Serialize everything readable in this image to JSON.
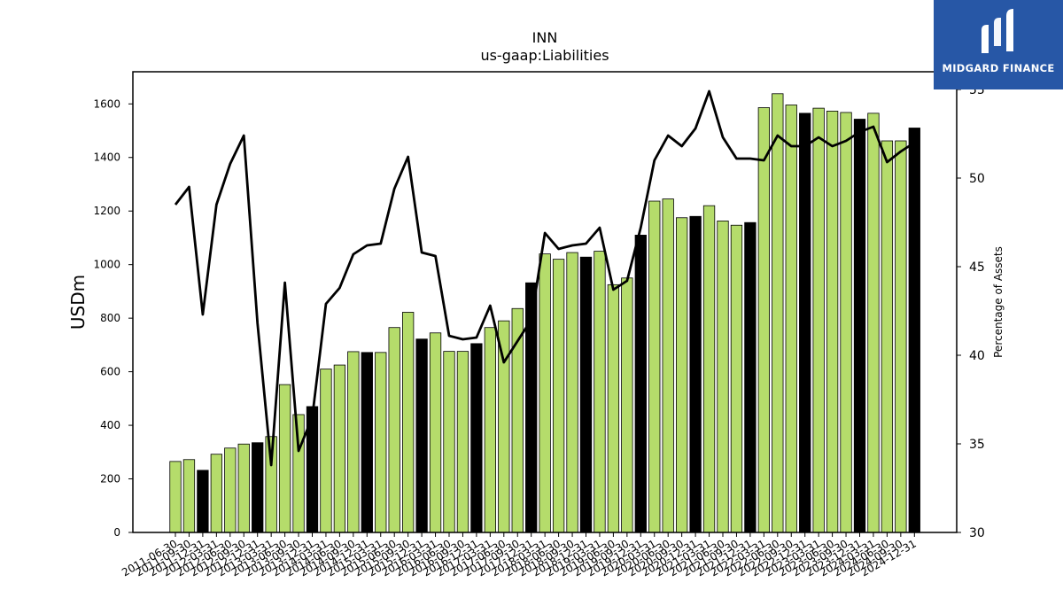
{
  "chart_data": {
    "type": "bar",
    "title": "INN",
    "subtitle": "us-gaap:Liabilities",
    "ylabel": "USDm",
    "y2label": "Percentage of Assets",
    "ylim": [
      0,
      1720
    ],
    "y2lim": [
      30,
      56
    ],
    "yticks": [
      0,
      200,
      400,
      600,
      800,
      1000,
      1200,
      1400,
      1600
    ],
    "y2ticks": [
      30,
      35,
      40,
      45,
      50,
      55
    ],
    "categories": [
      "2011-06-30",
      "2011-09-30",
      "2011-12-31",
      "2012-03-31",
      "2012-06-30",
      "2012-09-30",
      "2012-12-31",
      "2013-03-31",
      "2013-06-30",
      "2013-09-30",
      "2013-12-31",
      "2014-03-31",
      "2014-06-30",
      "2014-09-30",
      "2014-12-31",
      "2015-03-31",
      "2015-06-30",
      "2015-09-30",
      "2015-12-31",
      "2016-03-31",
      "2016-06-30",
      "2016-09-30",
      "2016-12-31",
      "2017-03-31",
      "2017-06-30",
      "2017-09-30",
      "2017-12-31",
      "2018-03-31",
      "2018-06-30",
      "2018-09-30",
      "2018-12-31",
      "2019-03-31",
      "2019-06-30",
      "2019-09-30",
      "2019-12-31",
      "2020-03-31",
      "2020-06-30",
      "2020-09-30",
      "2020-12-31",
      "2021-03-31",
      "2021-06-30",
      "2021-09-30",
      "2021-12-31",
      "2022-03-31",
      "2022-06-30",
      "2022-09-30",
      "2022-12-31",
      "2023-03-31",
      "2023-06-30",
      "2023-09-30",
      "2023-12-31",
      "2024-03-31",
      "2024-06-30",
      "2024-09-30",
      "2024-12-31"
    ],
    "xtick_labels": [
      "2011-06-30",
      "2011-09-30",
      "2011-12-31",
      "2012-03-31",
      "2012-06-30",
      "2012-09-30",
      "2012-12-31",
      "2013-03-31",
      "2013-06-30",
      "2013-09-30",
      "2013-12-31",
      "2014-03-31",
      "2014-06-30",
      "2014-09-30",
      "2014-12-31",
      "2015-03-31",
      "2015-06-30",
      "2015-09-30",
      "2015-12-31",
      "2016-03-31",
      "2016-06-30",
      "2016-09-30",
      "2016-12-31",
      "2017-03-31",
      "2017-06-30",
      "2017-09-30",
      "2017-12-31",
      "2018-03-31",
      "2018-06-30",
      "2018-09-30",
      "2018-12-31",
      "2019-03-31",
      "2019-06-30",
      "2019-09-30",
      "2019-12-31",
      "2020-03-31",
      "2020-06-30",
      "2020-09-30",
      "2020-12-31",
      "2021-03-31",
      "2021-06-30",
      "2021-09-30",
      "2021-12-31",
      "2022-03-31",
      "2022-06-30",
      "2022-09-30",
      "2022-12-31",
      "2023-03-31",
      "2023-06-30",
      "2023-09-30",
      "2023-12-31",
      "2024-03-31",
      "2024-06-30",
      "2024-09-30",
      "2024-12-31"
    ],
    "series": [
      {
        "type": "bar",
        "axis": "left",
        "values": [
          265,
          272,
          232,
          292,
          315,
          330,
          335,
          358,
          552,
          440,
          470,
          610,
          625,
          675,
          672,
          672,
          765,
          822,
          722,
          745,
          676,
          676,
          705,
          765,
          790,
          836,
          932,
          1040,
          1020,
          1045,
          1028,
          1050,
          925,
          950,
          1110,
          1237,
          1245,
          1175,
          1180,
          1220,
          1163,
          1147,
          1157,
          1586,
          1638,
          1596,
          1565,
          1584,
          1573,
          1568,
          1543,
          1565,
          1462,
          1462,
          1510
        ],
        "colors": [
          "#b5dc6b",
          "#b5dc6b",
          "#000000",
          "#b5dc6b",
          "#b5dc6b",
          "#b5dc6b",
          "#000000",
          "#b5dc6b",
          "#b5dc6b",
          "#b5dc6b",
          "#000000",
          "#b5dc6b",
          "#b5dc6b",
          "#b5dc6b",
          "#000000",
          "#b5dc6b",
          "#b5dc6b",
          "#b5dc6b",
          "#000000",
          "#b5dc6b",
          "#b5dc6b",
          "#b5dc6b",
          "#000000",
          "#b5dc6b",
          "#b5dc6b",
          "#b5dc6b",
          "#000000",
          "#b5dc6b",
          "#b5dc6b",
          "#b5dc6b",
          "#000000",
          "#b5dc6b",
          "#b5dc6b",
          "#b5dc6b",
          "#000000",
          "#b5dc6b",
          "#b5dc6b",
          "#b5dc6b",
          "#000000",
          "#b5dc6b",
          "#b5dc6b",
          "#b5dc6b",
          "#000000",
          "#b5dc6b",
          "#b5dc6b",
          "#b5dc6b",
          "#000000",
          "#b5dc6b",
          "#b5dc6b",
          "#b5dc6b",
          "#000000",
          "#b5dc6b",
          "#b5dc6b",
          "#b5dc6b",
          "#000000"
        ]
      },
      {
        "type": "line",
        "axis": "right",
        "color": "#000000",
        "values": [
          48.5,
          49.5,
          42.3,
          48.5,
          50.8,
          52.4,
          41.8,
          33.8,
          44.1,
          34.6,
          36.5,
          42.9,
          43.8,
          45.7,
          46.2,
          46.3,
          49.4,
          51.2,
          45.8,
          45.6,
          41.1,
          40.9,
          41.0,
          42.8,
          39.6,
          40.8,
          42.0,
          46.9,
          46.0,
          46.2,
          46.3,
          47.2,
          43.7,
          44.2,
          47.2,
          51.0,
          52.4,
          51.8,
          52.8,
          54.9,
          52.3,
          51.1,
          51.1,
          51.0,
          52.4,
          51.8,
          51.8,
          52.3,
          51.8,
          52.1,
          52.6,
          52.9,
          50.9,
          51.5,
          52.0
        ]
      }
    ]
  },
  "logo": {
    "brand": "MIDGARD FINANCE",
    "bg": "#2757a6"
  }
}
